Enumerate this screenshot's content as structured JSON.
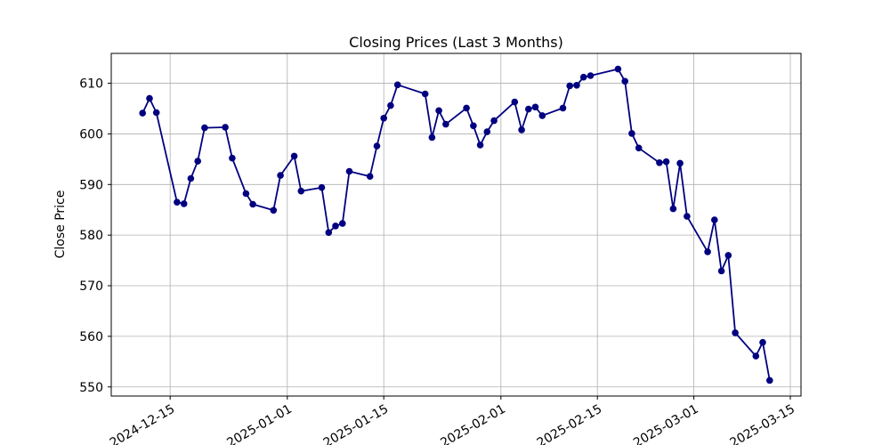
{
  "chart_data": {
    "type": "line",
    "title": "Closing Prices (Last 3 Months)",
    "xlabel": "",
    "ylabel": "Close Price",
    "legend": "none",
    "grid": true,
    "line_color": "#000080",
    "marker_color": "#000080",
    "grid_color": "#b0b0b0",
    "spine_color": "#000000",
    "ylim": [
      548.2,
      615.9
    ],
    "yticks": [
      550,
      560,
      570,
      580,
      590,
      600,
      610
    ],
    "xticks": [
      "2024-12-15",
      "2025-01-01",
      "2025-01-15",
      "2025-02-01",
      "2025-02-15",
      "2025-03-01",
      "2025-03-15"
    ],
    "dates": [
      "2024-12-11",
      "2024-12-12",
      "2024-12-13",
      "2024-12-16",
      "2024-12-17",
      "2024-12-18",
      "2024-12-19",
      "2024-12-20",
      "2024-12-23",
      "2024-12-24",
      "2024-12-26",
      "2024-12-27",
      "2024-12-30",
      "2024-12-31",
      "2025-01-02",
      "2025-01-03",
      "2025-01-06",
      "2025-01-07",
      "2025-01-08",
      "2025-01-09",
      "2025-01-10",
      "2025-01-13",
      "2025-01-14",
      "2025-01-15",
      "2025-01-16",
      "2025-01-17",
      "2025-01-21",
      "2025-01-22",
      "2025-01-23",
      "2025-01-24",
      "2025-01-27",
      "2025-01-28",
      "2025-01-29",
      "2025-01-30",
      "2025-01-31",
      "2025-02-03",
      "2025-02-04",
      "2025-02-05",
      "2025-02-06",
      "2025-02-07",
      "2025-02-10",
      "2025-02-11",
      "2025-02-12",
      "2025-02-13",
      "2025-02-14",
      "2025-02-18",
      "2025-02-19",
      "2025-02-20",
      "2025-02-21",
      "2025-02-24",
      "2025-02-25",
      "2025-02-26",
      "2025-02-27",
      "2025-02-28",
      "2025-03-03",
      "2025-03-04",
      "2025-03-05",
      "2025-03-06",
      "2025-03-07",
      "2025-03-10",
      "2025-03-11",
      "2025-03-12"
    ],
    "values": [
      604.1,
      607.0,
      604.2,
      586.5,
      586.2,
      591.2,
      594.6,
      601.2,
      601.3,
      595.2,
      588.2,
      586.1,
      584.9,
      591.8,
      595.6,
      588.7,
      589.4,
      580.5,
      581.8,
      582.3,
      592.6,
      591.6,
      597.6,
      603.1,
      605.6,
      609.7,
      607.9,
      599.3,
      604.6,
      601.9,
      605.1,
      601.6,
      597.8,
      600.4,
      602.6,
      606.3,
      600.8,
      604.9,
      605.3,
      603.6,
      605.1,
      609.5,
      609.6,
      611.2,
      611.5,
      612.8,
      610.4,
      600.1,
      597.2,
      594.3,
      594.5,
      585.2,
      594.2,
      583.7,
      576.7,
      583.0,
      572.9,
      576.0,
      560.7,
      556.1,
      558.8,
      551.3
    ]
  }
}
